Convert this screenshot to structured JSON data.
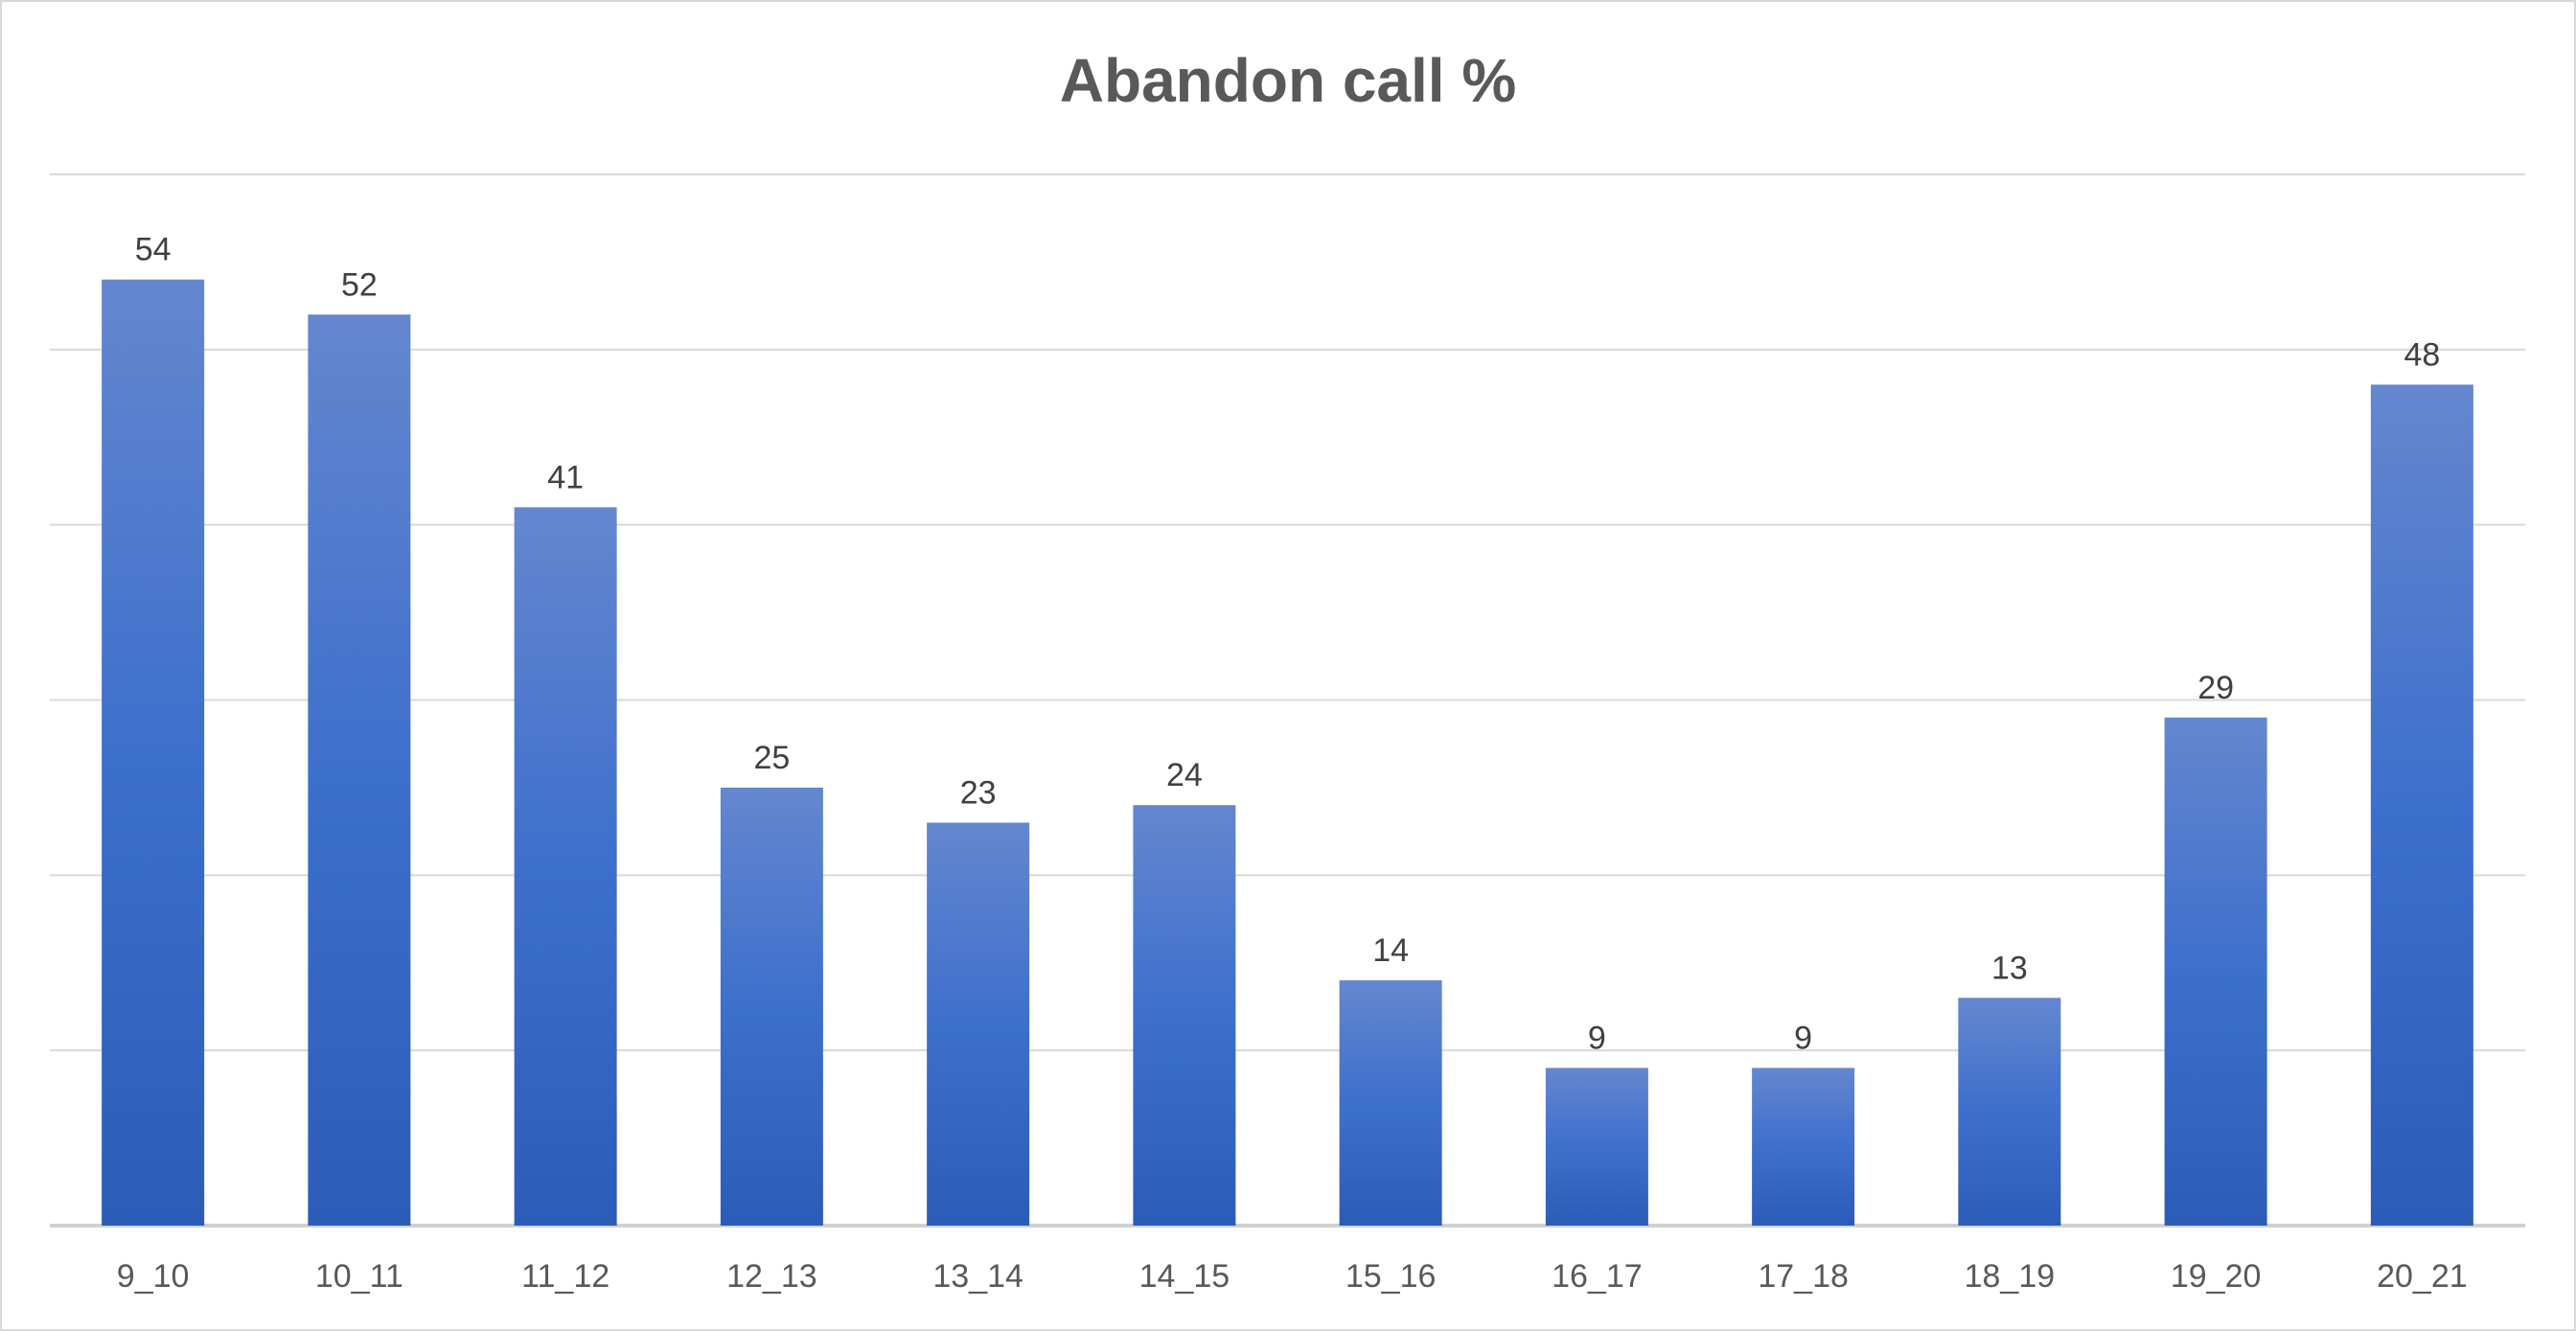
{
  "chart_data": {
    "type": "bar",
    "title": "Abandon call %",
    "categories": [
      "9_10",
      "10_11",
      "11_12",
      "12_13",
      "13_14",
      "14_15",
      "15_16",
      "16_17",
      "17_18",
      "18_19",
      "19_20",
      "20_21"
    ],
    "values": [
      54,
      52,
      41,
      25,
      23,
      24,
      14,
      9,
      9,
      13,
      29,
      48
    ],
    "xlabel": "",
    "ylabel": "",
    "ylim": [
      0,
      60
    ],
    "grid": true,
    "y_axis_labels": false,
    "legend": "none",
    "data_labels": true,
    "colors": {
      "bar_top": "#6487cf",
      "bar_mid": "#3d6fcc",
      "bar_bottom": "#2b5cb8",
      "gridline": "#d9d9d9",
      "title": "#595959",
      "label": "#404040"
    }
  }
}
